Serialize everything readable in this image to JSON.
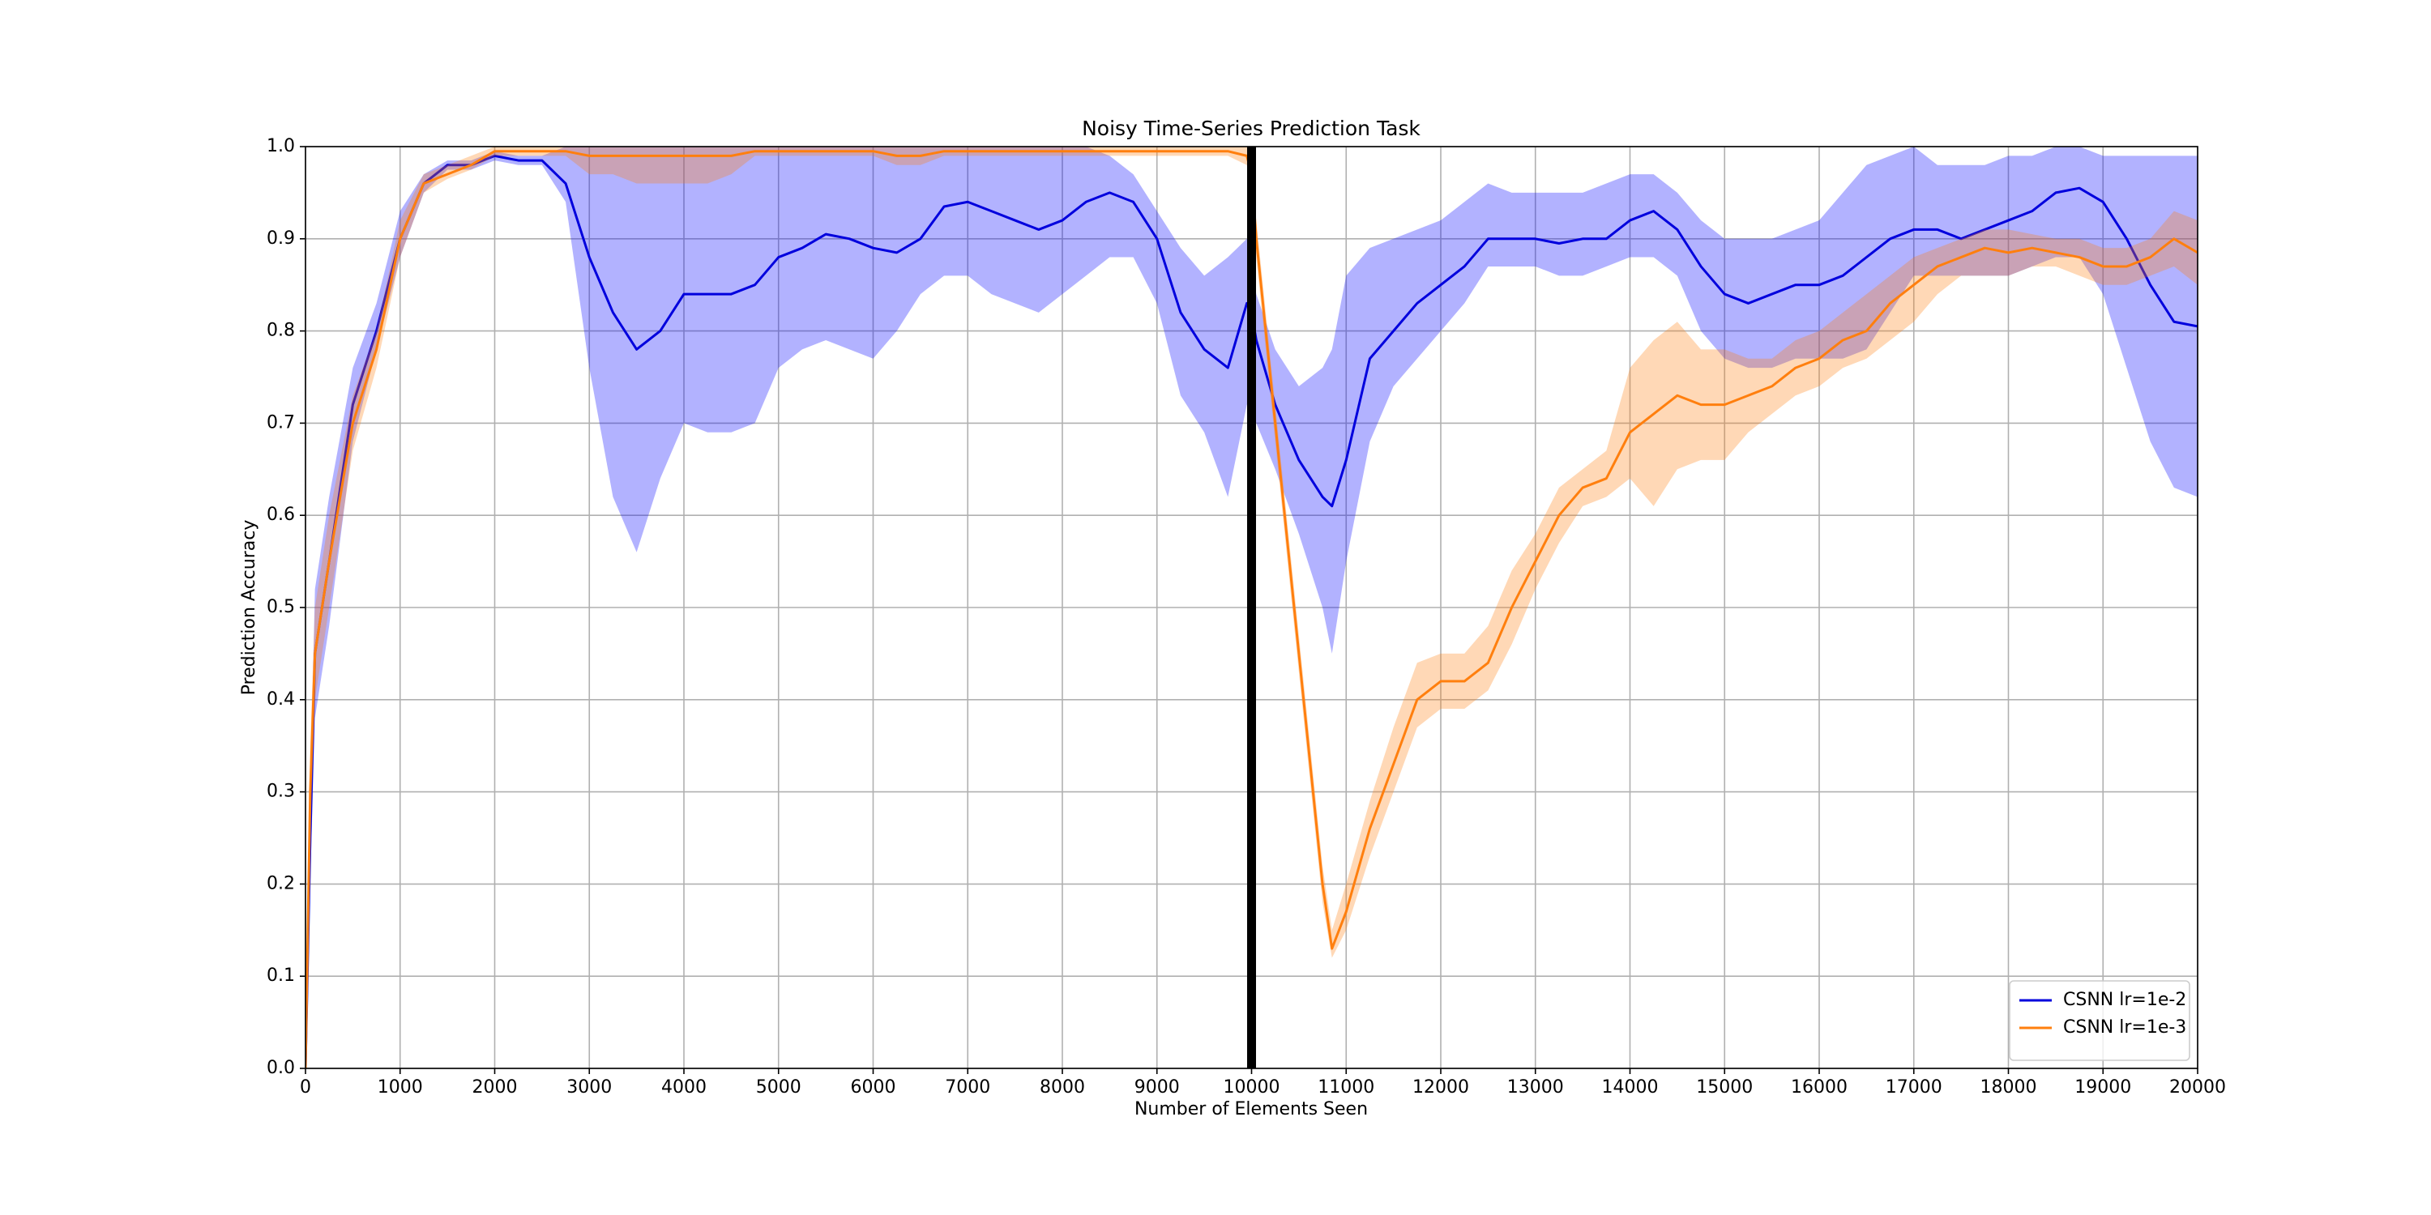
{
  "chart_data": {
    "type": "line",
    "title": "Noisy Time-Series Prediction Task",
    "xlabel": "Number of Elements Seen",
    "ylabel": "Prediction Accuracy",
    "x": [
      0,
      50,
      100,
      250,
      500,
      750,
      1000,
      1250,
      1500,
      1750,
      2000,
      2250,
      2500,
      2750,
      3000,
      3250,
      3500,
      3750,
      4000,
      4250,
      4500,
      4750,
      5000,
      5250,
      5500,
      5750,
      6000,
      6250,
      6500,
      6750,
      7000,
      7250,
      7500,
      7750,
      8000,
      8250,
      8500,
      8750,
      9000,
      9250,
      9500,
      9750,
      9950,
      10000,
      10050,
      10250,
      10500,
      10750,
      10850,
      11000,
      11250,
      11500,
      11750,
      12000,
      12250,
      12500,
      12750,
      13000,
      13250,
      13500,
      13750,
      14000,
      14250,
      14500,
      14750,
      15000,
      15250,
      15500,
      15750,
      16000,
      16250,
      16500,
      16750,
      17000,
      17250,
      17500,
      17750,
      18000,
      18250,
      18500,
      18750,
      19000,
      19250,
      19500,
      19750,
      20000
    ],
    "series": [
      {
        "name": "CSNN lr=1e-2",
        "color": "#0000dd",
        "band_color": "#0000ff",
        "values": [
          0,
          0.25,
          0.45,
          0.55,
          0.72,
          0.8,
          0.9,
          0.96,
          0.98,
          0.98,
          0.99,
          0.985,
          0.985,
          0.96,
          0.88,
          0.82,
          0.78,
          0.8,
          0.84,
          0.84,
          0.84,
          0.85,
          0.88,
          0.89,
          0.905,
          0.9,
          0.89,
          0.885,
          0.9,
          0.935,
          0.94,
          0.93,
          0.92,
          0.91,
          0.92,
          0.94,
          0.95,
          0.94,
          0.9,
          0.82,
          0.78,
          0.76,
          0.83,
          0.82,
          0.79,
          0.72,
          0.66,
          0.62,
          0.61,
          0.66,
          0.77,
          0.8,
          0.83,
          0.85,
          0.87,
          0.9,
          0.9,
          0.9,
          0.895,
          0.9,
          0.9,
          0.92,
          0.93,
          0.91,
          0.87,
          0.84,
          0.83,
          0.84,
          0.85,
          0.85,
          0.86,
          0.88,
          0.9,
          0.91,
          0.91,
          0.9,
          0.91,
          0.92,
          0.93,
          0.95,
          0.955,
          0.94,
          0.9,
          0.85,
          0.81,
          0.805
        ],
        "lower": [
          0,
          0.2,
          0.38,
          0.48,
          0.68,
          0.78,
          0.88,
          0.95,
          0.975,
          0.975,
          0.985,
          0.98,
          0.98,
          0.94,
          0.76,
          0.62,
          0.56,
          0.64,
          0.7,
          0.69,
          0.69,
          0.7,
          0.76,
          0.78,
          0.79,
          0.78,
          0.77,
          0.8,
          0.84,
          0.86,
          0.86,
          0.84,
          0.83,
          0.82,
          0.84,
          0.86,
          0.88,
          0.88,
          0.83,
          0.73,
          0.69,
          0.62,
          0.72,
          0.72,
          0.7,
          0.65,
          0.58,
          0.5,
          0.45,
          0.55,
          0.68,
          0.74,
          0.77,
          0.8,
          0.83,
          0.87,
          0.87,
          0.87,
          0.86,
          0.86,
          0.87,
          0.88,
          0.88,
          0.86,
          0.8,
          0.77,
          0.76,
          0.76,
          0.77,
          0.77,
          0.77,
          0.78,
          0.82,
          0.86,
          0.86,
          0.86,
          0.86,
          0.86,
          0.87,
          0.88,
          0.88,
          0.84,
          0.76,
          0.68,
          0.63,
          0.62
        ],
        "upper": [
          0,
          0.3,
          0.52,
          0.62,
          0.76,
          0.83,
          0.93,
          0.97,
          0.985,
          0.985,
          0.995,
          0.99,
          0.99,
          1.0,
          1.0,
          1.0,
          1.0,
          1.0,
          1.0,
          1.0,
          1.0,
          1.0,
          1.0,
          1.0,
          1.0,
          1.0,
          1.0,
          1.0,
          1.0,
          1.0,
          1.0,
          1.0,
          1.0,
          1.0,
          1.0,
          1.0,
          0.99,
          0.97,
          0.93,
          0.89,
          0.86,
          0.88,
          0.9,
          0.88,
          0.84,
          0.78,
          0.74,
          0.76,
          0.78,
          0.86,
          0.89,
          0.9,
          0.91,
          0.92,
          0.94,
          0.96,
          0.95,
          0.95,
          0.95,
          0.95,
          0.96,
          0.97,
          0.97,
          0.95,
          0.92,
          0.9,
          0.9,
          0.9,
          0.91,
          0.92,
          0.95,
          0.98,
          0.99,
          1.0,
          0.98,
          0.98,
          0.98,
          0.99,
          0.99,
          1.0,
          1.0,
          0.99,
          0.99,
          0.99,
          0.99,
          0.99
        ]
      },
      {
        "name": "CSNN lr=1e-3",
        "color": "#ff7f0e",
        "band_color": "#ff7f0e",
        "values": [
          0,
          0.3,
          0.45,
          0.55,
          0.7,
          0.78,
          0.9,
          0.96,
          0.97,
          0.98,
          0.995,
          0.995,
          0.995,
          0.995,
          0.99,
          0.99,
          0.99,
          0.99,
          0.99,
          0.99,
          0.99,
          0.995,
          0.995,
          0.995,
          0.995,
          0.995,
          0.995,
          0.99,
          0.99,
          0.995,
          0.995,
          0.995,
          0.995,
          0.995,
          0.995,
          0.995,
          0.995,
          0.995,
          0.995,
          0.995,
          0.995,
          0.995,
          0.99,
          0.97,
          0.9,
          0.7,
          0.45,
          0.2,
          0.13,
          0.17,
          0.26,
          0.33,
          0.4,
          0.42,
          0.42,
          0.44,
          0.5,
          0.55,
          0.6,
          0.63,
          0.64,
          0.69,
          0.71,
          0.73,
          0.72,
          0.72,
          0.73,
          0.74,
          0.76,
          0.77,
          0.79,
          0.8,
          0.83,
          0.85,
          0.87,
          0.88,
          0.89,
          0.885,
          0.89,
          0.885,
          0.88,
          0.87,
          0.87,
          0.88,
          0.9,
          0.885
        ],
        "lower": [
          0,
          0.25,
          0.4,
          0.5,
          0.67,
          0.76,
          0.88,
          0.95,
          0.965,
          0.975,
          0.99,
          0.99,
          0.99,
          0.99,
          0.97,
          0.97,
          0.96,
          0.96,
          0.96,
          0.96,
          0.97,
          0.99,
          0.99,
          0.99,
          0.99,
          0.99,
          0.99,
          0.98,
          0.98,
          0.99,
          0.99,
          0.99,
          0.99,
          0.99,
          0.99,
          0.99,
          0.99,
          0.99,
          0.99,
          0.99,
          0.99,
          0.99,
          0.98,
          0.95,
          0.88,
          0.68,
          0.43,
          0.18,
          0.12,
          0.15,
          0.23,
          0.3,
          0.37,
          0.39,
          0.39,
          0.41,
          0.46,
          0.52,
          0.57,
          0.61,
          0.62,
          0.64,
          0.61,
          0.65,
          0.66,
          0.66,
          0.69,
          0.71,
          0.73,
          0.74,
          0.76,
          0.77,
          0.79,
          0.81,
          0.84,
          0.86,
          0.86,
          0.86,
          0.87,
          0.87,
          0.86,
          0.85,
          0.85,
          0.86,
          0.87,
          0.85
        ],
        "upper": [
          0,
          0.35,
          0.5,
          0.6,
          0.73,
          0.8,
          0.92,
          0.97,
          0.98,
          0.99,
          1.0,
          1.0,
          1.0,
          1.0,
          1.0,
          1.0,
          1.0,
          1.0,
          1.0,
          1.0,
          1.0,
          1.0,
          1.0,
          1.0,
          1.0,
          1.0,
          1.0,
          1.0,
          1.0,
          1.0,
          1.0,
          1.0,
          1.0,
          1.0,
          1.0,
          1.0,
          1.0,
          1.0,
          1.0,
          1.0,
          1.0,
          1.0,
          1.0,
          0.99,
          0.92,
          0.72,
          0.47,
          0.22,
          0.15,
          0.2,
          0.29,
          0.37,
          0.44,
          0.45,
          0.45,
          0.48,
          0.54,
          0.58,
          0.63,
          0.65,
          0.67,
          0.76,
          0.79,
          0.81,
          0.78,
          0.78,
          0.77,
          0.77,
          0.79,
          0.8,
          0.82,
          0.84,
          0.86,
          0.88,
          0.89,
          0.9,
          0.91,
          0.91,
          0.905,
          0.9,
          0.9,
          0.89,
          0.89,
          0.9,
          0.93,
          0.92
        ]
      }
    ],
    "xlim": [
      0,
      20000
    ],
    "ylim": [
      0,
      1
    ],
    "xticks": [
      0,
      1000,
      2000,
      3000,
      4000,
      5000,
      6000,
      7000,
      8000,
      9000,
      10000,
      11000,
      12000,
      13000,
      14000,
      15000,
      16000,
      17000,
      18000,
      19000,
      20000
    ],
    "yticks": [
      {
        "value": 0,
        "label": "0.0"
      },
      0.1,
      0.2,
      0.3,
      0.4,
      0.5,
      0.6,
      0.7,
      0.8,
      0.9,
      {
        "value": 1,
        "label": "1.0"
      }
    ],
    "grid": true,
    "legend": "lower right",
    "vline": 10000,
    "vline_color": "#000000"
  }
}
